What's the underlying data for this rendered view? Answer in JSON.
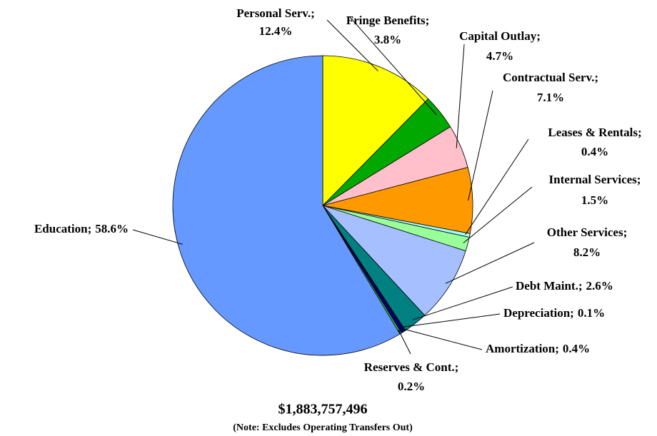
{
  "chart_data": {
    "type": "pie",
    "categories": [
      "Personal Serv.;",
      "Fringe Benefits;",
      "Capital Outlay;",
      "Contractual Serv.;",
      "Leases & Rentals;",
      "Internal Services;",
      "Other Services;",
      "Debt Maint.;",
      "Depreciation;",
      "Amortization;",
      "Reserves & Cont.;",
      "Education;"
    ],
    "values": [
      12.4,
      3.8,
      4.7,
      7.1,
      0.4,
      1.5,
      8.2,
      2.6,
      0.1,
      0.4,
      0.2,
      58.6
    ],
    "value_labels": [
      "12.4%",
      "3.8%",
      "4.7%",
      "7.1%",
      "0.4%",
      "1.5%",
      "8.2%",
      "2.6%",
      "0.1%",
      "0.4%",
      "0.2%",
      "58.6%"
    ],
    "colors": [
      "#ffff00",
      "#00a800",
      "#ffc0cb",
      "#ff9900",
      "#99ffff",
      "#99ff99",
      "#a6c0ff",
      "#008080",
      "#333399",
      "#000080",
      "#33cc33",
      "#6699ff"
    ],
    "total": "$1,883,757,496",
    "note": "(Note: Excludes Operating Transfers Out)"
  }
}
